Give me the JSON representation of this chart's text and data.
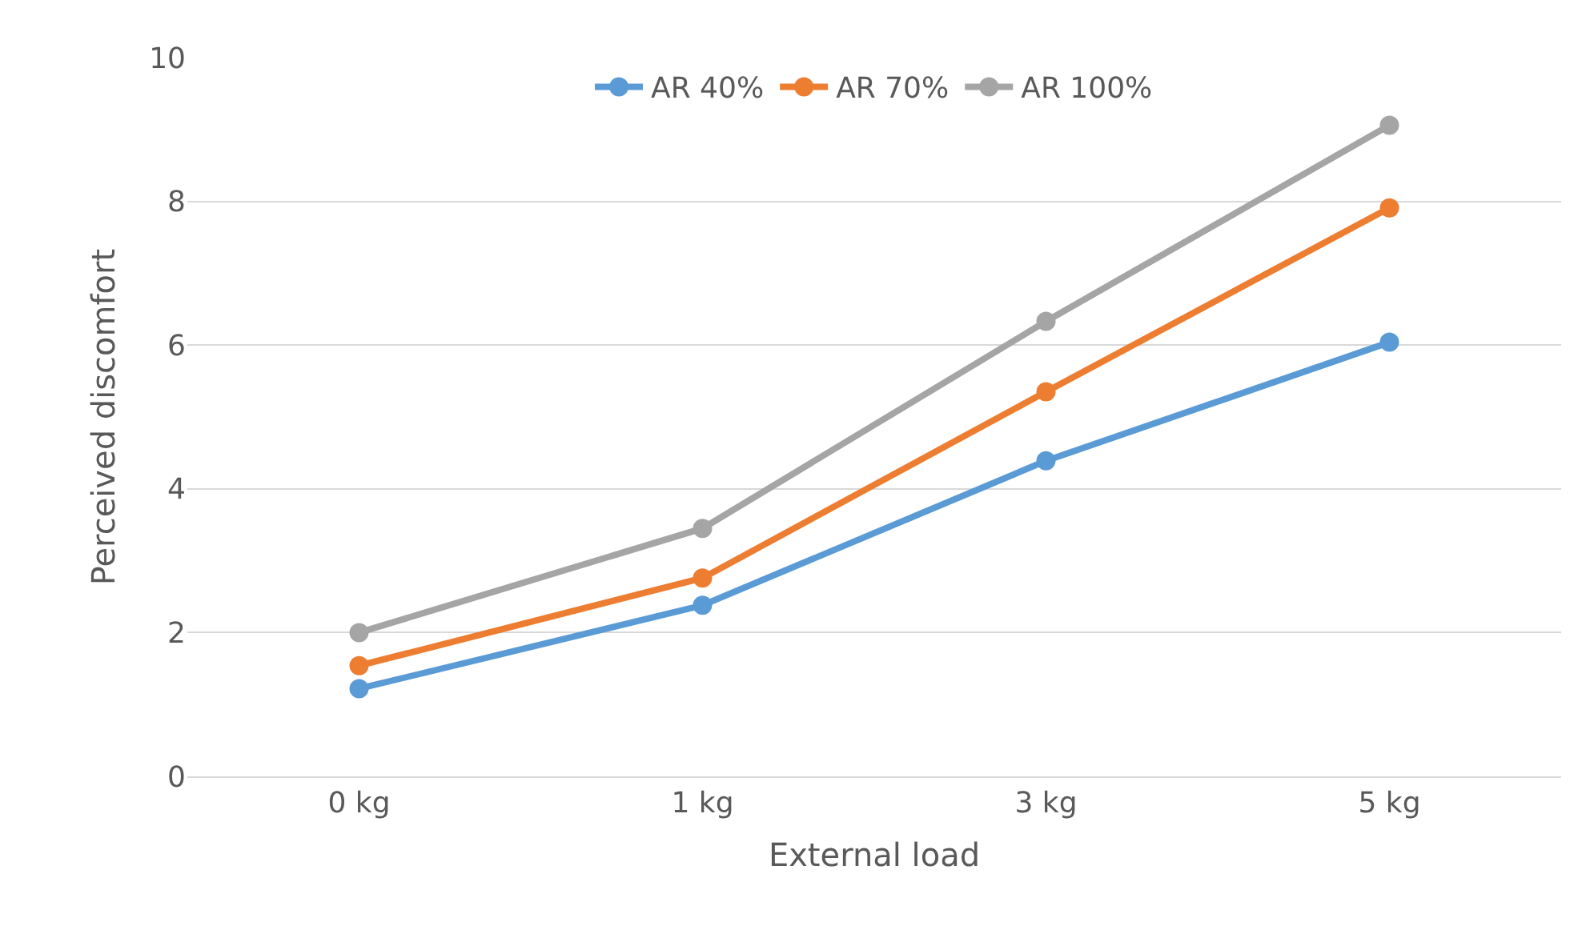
{
  "chart_data": {
    "type": "line",
    "xlabel": "External load",
    "ylabel": "Perceived discomfort",
    "categories": [
      "0 kg",
      "1 kg",
      "3 kg",
      "5 kg"
    ],
    "series": [
      {
        "name": "AR 40%",
        "color": "#5b9bd5",
        "values": [
          1.22,
          2.38,
          4.39,
          6.04
        ]
      },
      {
        "name": "AR 70%",
        "color": "#ed7d31",
        "values": [
          1.54,
          2.76,
          5.35,
          7.91
        ]
      },
      {
        "name": "AR 100%",
        "color": "#a5a5a5",
        "values": [
          2.0,
          3.45,
          6.33,
          9.06
        ]
      }
    ],
    "ylim": [
      0,
      10
    ],
    "yticks": [
      0,
      2,
      4,
      6,
      8,
      10
    ],
    "grid": "y",
    "legend": "top",
    "marker": "circle",
    "line_style": "solid"
  }
}
